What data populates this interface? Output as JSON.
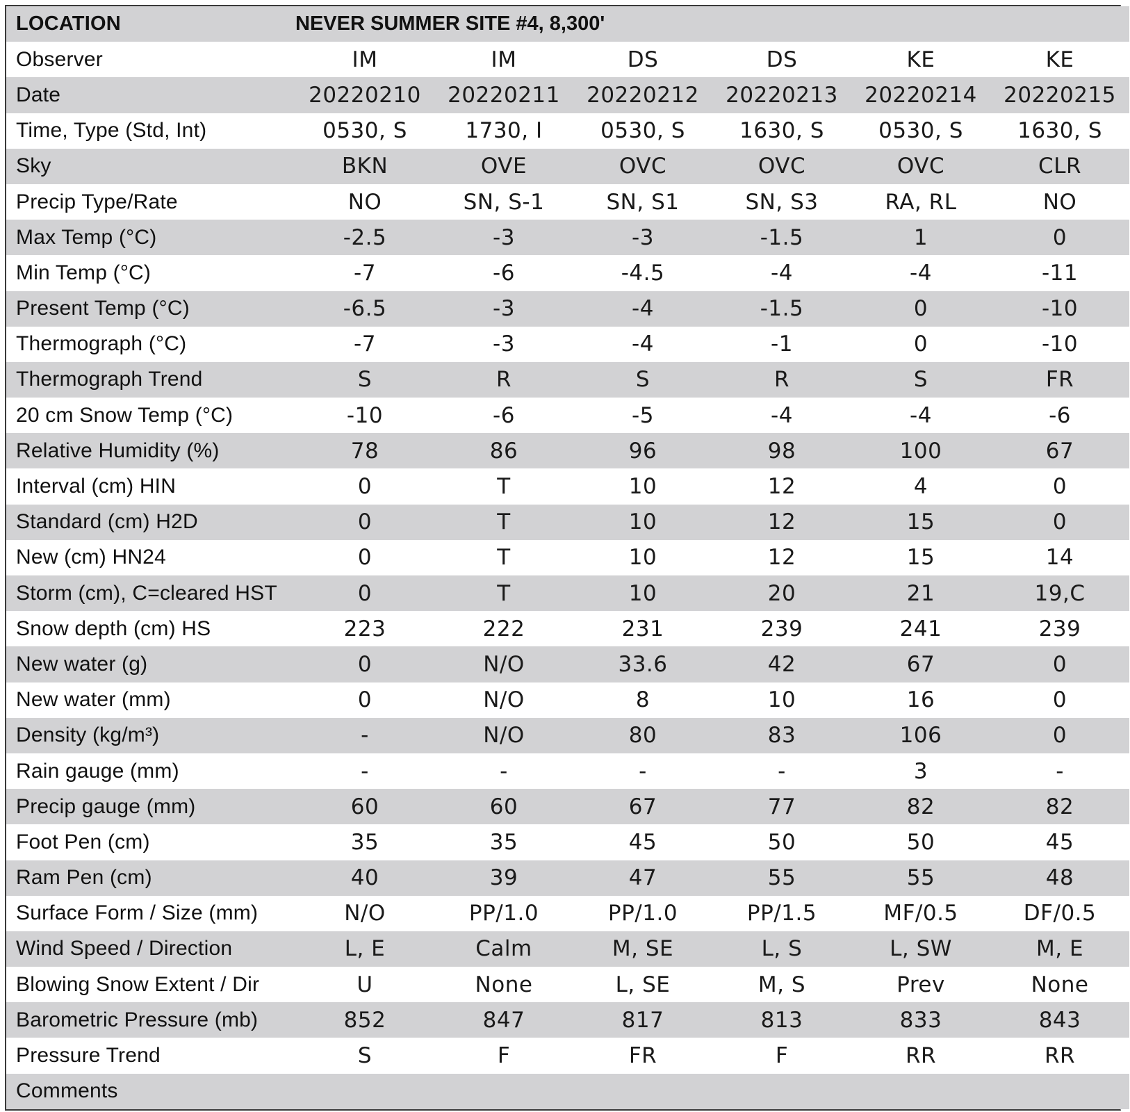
{
  "location_label": "LOCATION",
  "location_value": "NEVER SUMMER SITE #4, 8,300'",
  "rows": [
    {
      "label": "Observer",
      "values": [
        "IM",
        "IM",
        "DS",
        "DS",
        "KE",
        "KE"
      ]
    },
    {
      "label": "Date",
      "values": [
        "20220210",
        "20220211",
        "20220212",
        "20220213",
        "20220214",
        "20220215"
      ]
    },
    {
      "label": "Time, Type (Std, Int)",
      "values": [
        "0530, S",
        "1730, I",
        "0530, S",
        "1630, S",
        "0530, S",
        "1630, S"
      ]
    },
    {
      "label": "Sky",
      "values": [
        "BKN",
        "OVE",
        "OVC",
        "OVC",
        "OVC",
        "CLR"
      ]
    },
    {
      "label": "Precip Type/Rate",
      "values": [
        "NO",
        "SN, S-1",
        "SN, S1",
        "SN, S3",
        "RA, RL",
        "NO"
      ]
    },
    {
      "label": "Max Temp (°C)",
      "values": [
        "-2.5",
        "-3",
        "-3",
        "-1.5",
        "1",
        "0"
      ]
    },
    {
      "label": "Min Temp (°C)",
      "values": [
        "-7",
        "-6",
        "-4.5",
        "-4",
        "-4",
        "-11"
      ]
    },
    {
      "label": "Present Temp (°C)",
      "values": [
        "-6.5",
        "-3",
        "-4",
        "-1.5",
        "0",
        "-10"
      ]
    },
    {
      "label": "Thermograph (°C)",
      "values": [
        "-7",
        "-3",
        "-4",
        "-1",
        "0",
        "-10"
      ]
    },
    {
      "label": "Thermograph Trend",
      "values": [
        "S",
        "R",
        "S",
        "R",
        "S",
        "FR"
      ]
    },
    {
      "label": "20 cm Snow Temp (°C)",
      "values": [
        "-10",
        "-6",
        "-5",
        "-4",
        "-4",
        "-6"
      ]
    },
    {
      "label": "Relative Humidity (%)",
      "values": [
        "78",
        "86",
        "96",
        "98",
        "100",
        "67"
      ]
    },
    {
      "label": "Interval (cm) HIN",
      "values": [
        "0",
        "T",
        "10",
        "12",
        "4",
        "0"
      ]
    },
    {
      "label": "Standard (cm) H2D",
      "values": [
        "0",
        "T",
        "10",
        "12",
        "15",
        "0"
      ]
    },
    {
      "label": "New (cm) HN24",
      "values": [
        "0",
        "T",
        "10",
        "12",
        "15",
        "14"
      ]
    },
    {
      "label": "Storm (cm), C=cleared HST",
      "values": [
        "0",
        "T",
        "10",
        "20",
        "21",
        "19,C"
      ]
    },
    {
      "label": "Snow depth (cm) HS",
      "values": [
        "223",
        "222",
        "231",
        "239",
        "241",
        "239"
      ]
    },
    {
      "label": "New water (g)",
      "values": [
        "0",
        "N/O",
        "33.6",
        "42",
        "67",
        "0"
      ]
    },
    {
      "label": "New water (mm)",
      "values": [
        "0",
        "N/O",
        "8",
        "10",
        "16",
        "0"
      ]
    },
    {
      "label": "Density (kg/m³)",
      "values": [
        "-",
        "N/O",
        "80",
        "83",
        "106",
        "0"
      ]
    },
    {
      "label": "Rain gauge (mm)",
      "values": [
        "-",
        "-",
        "-",
        "-",
        "3",
        "-"
      ]
    },
    {
      "label": "Precip gauge (mm)",
      "values": [
        "60",
        "60",
        "67",
        "77",
        "82",
        "82"
      ]
    },
    {
      "label": "Foot Pen (cm)",
      "values": [
        "35",
        "35",
        "45",
        "50",
        "50",
        "45"
      ]
    },
    {
      "label": "Ram Pen (cm)",
      "values": [
        "40",
        "39",
        "47",
        "55",
        "55",
        "48"
      ]
    },
    {
      "label": "Surface Form / Size (mm)",
      "values": [
        "N/O",
        "PP/1.0",
        "PP/1.0",
        "PP/1.5",
        "MF/0.5",
        "DF/0.5"
      ]
    },
    {
      "label": "Wind Speed / Direction",
      "values": [
        "L, E",
        "Calm",
        "M, SE",
        "L, S",
        "L, SW",
        "M, E"
      ]
    },
    {
      "label": "Blowing Snow Extent / Dir",
      "values": [
        "U",
        "None",
        "L, SE",
        "M, S",
        "Prev",
        "None"
      ]
    },
    {
      "label": "Barometric Pressure (mb)",
      "values": [
        "852",
        "847",
        "817",
        "813",
        "833",
        "843"
      ]
    },
    {
      "label": "Pressure Trend",
      "values": [
        "S",
        "F",
        "FR",
        "F",
        "RR",
        "RR"
      ]
    }
  ],
  "comments_label": "Comments"
}
